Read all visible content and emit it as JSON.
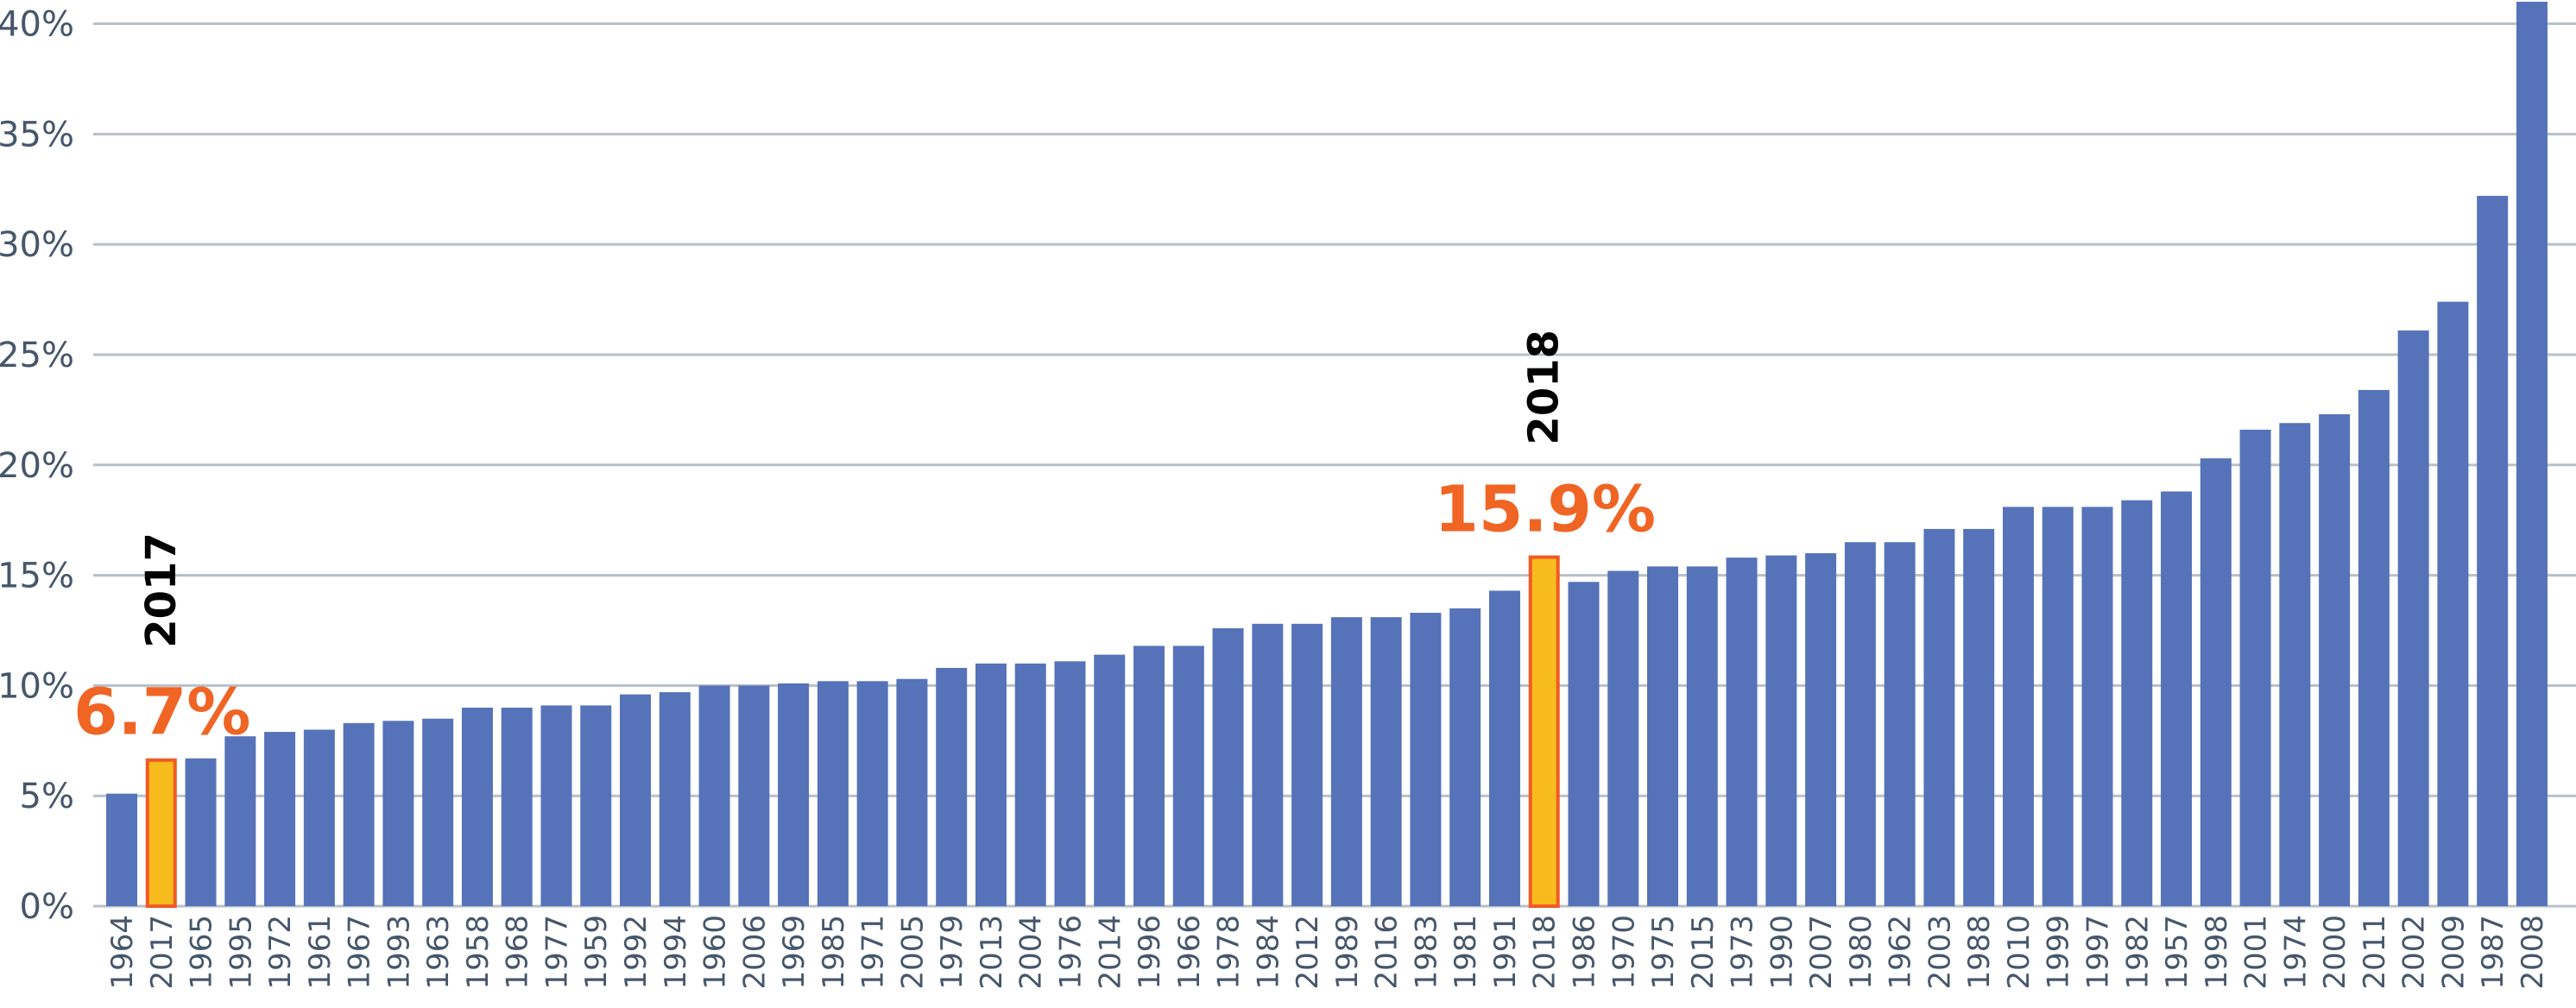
{
  "colors": {
    "bar": "#5673b9",
    "highlight_fill": "#f7bb1d",
    "highlight_stroke": "#f05a25",
    "annotation_value": "#f06424",
    "gridline": "#b7bfc9",
    "axis_text": "#46566b"
  },
  "chart_data": {
    "type": "bar",
    "title": "",
    "xlabel": "",
    "ylabel": "",
    "ylim": [
      0,
      41
    ],
    "y_ticks": [
      0,
      5,
      10,
      15,
      20,
      25,
      30,
      35,
      40
    ],
    "y_tick_labels": [
      "0%",
      "5%",
      "10%",
      "15%",
      "20%",
      "25%",
      "30%",
      "35%",
      "40%"
    ],
    "grid": true,
    "legend": "none",
    "categories": [
      "1964",
      "2017",
      "1965",
      "1995",
      "1972",
      "1961",
      "1967",
      "1993",
      "1963",
      "1958",
      "1968",
      "1977",
      "1959",
      "1992",
      "1994",
      "1960",
      "2006",
      "1969",
      "1985",
      "1971",
      "2005",
      "1979",
      "2013",
      "2004",
      "1976",
      "2014",
      "1996",
      "1966",
      "1978",
      "1984",
      "2012",
      "1989",
      "2016",
      "1983",
      "1981",
      "1991",
      "2018",
      "1986",
      "1970",
      "1975",
      "2015",
      "1973",
      "1990",
      "2007",
      "1980",
      "1962",
      "2003",
      "1988",
      "2010",
      "1999",
      "1997",
      "1982",
      "1957",
      "1998",
      "2001",
      "1974",
      "2000",
      "2011",
      "2002",
      "2009",
      "1987",
      "2008"
    ],
    "values": [
      5.1,
      6.7,
      6.7,
      7.7,
      7.9,
      8.0,
      8.3,
      8.4,
      8.5,
      9.0,
      9.0,
      9.1,
      9.1,
      9.6,
      9.7,
      10.0,
      10.0,
      10.1,
      10.2,
      10.2,
      10.3,
      10.8,
      11.0,
      11.0,
      11.1,
      11.4,
      11.8,
      11.8,
      12.6,
      12.8,
      12.8,
      13.1,
      13.1,
      13.3,
      13.5,
      14.3,
      15.9,
      14.7,
      15.2,
      15.4,
      15.4,
      15.8,
      15.9,
      16.0,
      16.5,
      16.5,
      17.1,
      17.1,
      18.1,
      18.1,
      18.1,
      18.4,
      18.8,
      20.3,
      21.6,
      21.9,
      22.3,
      23.4,
      26.1,
      27.4,
      32.2,
      41.0
    ],
    "highlighted": [
      "2017",
      "2018"
    ],
    "annotations": [
      {
        "year": "2017",
        "value_label": "6.7%"
      },
      {
        "year": "2018",
        "value_label": "15.9%"
      }
    ]
  }
}
